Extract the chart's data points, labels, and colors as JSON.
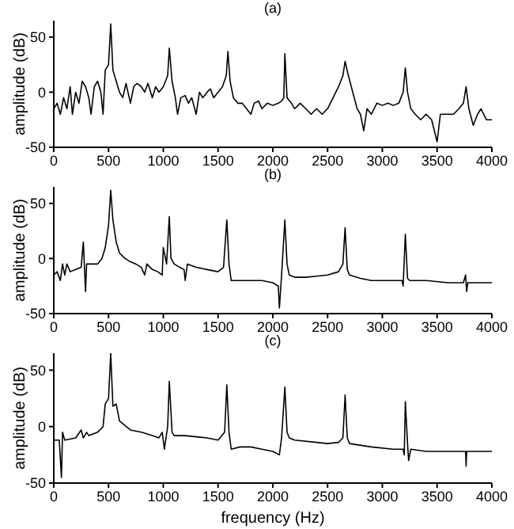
{
  "chart_data": [
    {
      "type": "line",
      "title": "(a)",
      "ylabel": "amplitude (dB)",
      "xlim": [
        0,
        4000
      ],
      "xticks": [
        0,
        500,
        1000,
        1500,
        2000,
        2500,
        3000,
        3500,
        4000
      ],
      "ylim": [
        -50,
        65
      ],
      "yticks": [
        -50,
        0,
        50
      ],
      "marker": "none",
      "line_style": "solid",
      "x": [
        0,
        30,
        60,
        90,
        120,
        150,
        170,
        200,
        230,
        260,
        290,
        320,
        340,
        370,
        400,
        430,
        450,
        470,
        500,
        520,
        540,
        570,
        600,
        630,
        660,
        700,
        730,
        760,
        800,
        830,
        860,
        900,
        930,
        960,
        1000,
        1040,
        1055,
        1080,
        1110,
        1130,
        1160,
        1200,
        1230,
        1260,
        1300,
        1330,
        1360,
        1400,
        1430,
        1460,
        1500,
        1540,
        1575,
        1590,
        1610,
        1640,
        1680,
        1720,
        1760,
        1800,
        1830,
        1870,
        1900,
        1950,
        2000,
        2050,
        2080,
        2100,
        2110,
        2130,
        2170,
        2200,
        2250,
        2300,
        2350,
        2400,
        2450,
        2500,
        2550,
        2600,
        2640,
        2660,
        2690,
        2730,
        2770,
        2800,
        2830,
        2860,
        2900,
        2950,
        3000,
        3050,
        3100,
        3150,
        3190,
        3210,
        3230,
        3260,
        3300,
        3350,
        3400,
        3450,
        3500,
        3530,
        3600,
        3650,
        3700,
        3740,
        3765,
        3790,
        3830,
        3870,
        3900,
        3950,
        4000
      ],
      "series": [
        {
          "color": "#000000",
          "values": [
            -15,
            -10,
            -20,
            -5,
            -15,
            5,
            -20,
            0,
            -10,
            10,
            5,
            -5,
            -20,
            5,
            10,
            0,
            -20,
            20,
            25,
            62,
            20,
            10,
            0,
            -5,
            8,
            -10,
            5,
            8,
            5,
            0,
            8,
            -5,
            5,
            0,
            5,
            15,
            40,
            10,
            -5,
            -20,
            -5,
            -3,
            -10,
            -5,
            -20,
            0,
            -5,
            0,
            3,
            -5,
            0,
            5,
            15,
            37,
            10,
            -5,
            -10,
            -10,
            -15,
            -20,
            -10,
            -8,
            -15,
            -10,
            -12,
            -10,
            -8,
            -5,
            35,
            -5,
            -10,
            -15,
            -10,
            -15,
            -20,
            -15,
            -20,
            -15,
            -5,
            5,
            15,
            28,
            15,
            0,
            -15,
            -20,
            -35,
            -15,
            -20,
            -10,
            -12,
            -10,
            -12,
            -10,
            0,
            22,
            0,
            -15,
            -20,
            -25,
            -20,
            -25,
            -45,
            -20,
            -20,
            -20,
            -15,
            -10,
            5,
            -15,
            -30,
            -20,
            -15,
            -25,
            -25
          ]
        }
      ]
    },
    {
      "type": "line",
      "title": "(b)",
      "ylabel": "amplitude (dB)",
      "xlim": [
        0,
        4000
      ],
      "xticks": [
        0,
        500,
        1000,
        1500,
        2000,
        2500,
        3000,
        3500,
        4000
      ],
      "ylim": [
        -50,
        65
      ],
      "yticks": [
        -50,
        0,
        50
      ],
      "marker": "none",
      "line_style": "solid",
      "x": [
        0,
        30,
        60,
        80,
        100,
        120,
        150,
        200,
        250,
        270,
        290,
        300,
        350,
        400,
        440,
        470,
        500,
        520,
        540,
        570,
        600,
        650,
        700,
        750,
        800,
        830,
        850,
        900,
        950,
        990,
        1000,
        1030,
        1055,
        1070,
        1100,
        1150,
        1190,
        1200,
        1220,
        1300,
        1400,
        1500,
        1550,
        1580,
        1600,
        1620,
        1700,
        1800,
        1900,
        2000,
        2050,
        2060,
        2080,
        2110,
        2130,
        2150,
        2200,
        2300,
        2400,
        2500,
        2600,
        2640,
        2660,
        2680,
        2700,
        2800,
        2900,
        3000,
        3100,
        3180,
        3190,
        3210,
        3230,
        3250,
        3400,
        3600,
        3740,
        3760,
        3770,
        3780,
        4000
      ],
      "series": [
        {
          "color": "#000000",
          "values": [
            -15,
            -12,
            -20,
            -5,
            -15,
            -5,
            -12,
            -10,
            -8,
            15,
            -30,
            -5,
            -5,
            -5,
            0,
            10,
            30,
            62,
            35,
            15,
            5,
            0,
            -3,
            -5,
            -8,
            -15,
            -5,
            -10,
            -12,
            -15,
            10,
            -5,
            38,
            0,
            -5,
            -8,
            -10,
            -20,
            -5,
            -8,
            -10,
            -12,
            -8,
            35,
            -5,
            -20,
            -20,
            -20,
            -20,
            -22,
            -25,
            -45,
            -15,
            35,
            -5,
            -15,
            -17,
            -17,
            -16,
            -15,
            -12,
            -5,
            28,
            -10,
            -15,
            -18,
            -20,
            -20,
            -20,
            -20,
            -25,
            22,
            -18,
            -20,
            -20,
            -22,
            -22,
            -15,
            -30,
            -22,
            -22
          ]
        }
      ]
    },
    {
      "type": "line",
      "title": "(c)",
      "xlabel": "frequency (Hz)",
      "ylabel": "amplitude (dB)",
      "xlim": [
        0,
        4000
      ],
      "xticks": [
        0,
        500,
        1000,
        1500,
        2000,
        2500,
        3000,
        3500,
        4000
      ],
      "ylim": [
        -50,
        65
      ],
      "yticks": [
        -50,
        0,
        50
      ],
      "marker": "none",
      "line_style": "solid",
      "x": [
        0,
        50,
        70,
        80,
        100,
        200,
        250,
        270,
        300,
        320,
        400,
        450,
        470,
        500,
        520,
        540,
        570,
        600,
        700,
        800,
        900,
        960,
        990,
        1010,
        1040,
        1055,
        1080,
        1100,
        1200,
        1400,
        1500,
        1560,
        1580,
        1600,
        1620,
        1700,
        1800,
        1900,
        2000,
        2060,
        2080,
        2110,
        2130,
        2150,
        2200,
        2400,
        2500,
        2600,
        2640,
        2660,
        2680,
        2700,
        2900,
        3100,
        3190,
        3200,
        3210,
        3230,
        3240,
        3260,
        3400,
        3600,
        3760,
        3765,
        3770,
        4000
      ],
      "series": [
        {
          "color": "#000000",
          "values": [
            -12,
            -12,
            -45,
            -5,
            -12,
            -10,
            -3,
            -10,
            -5,
            -8,
            -5,
            0,
            20,
            25,
            65,
            18,
            20,
            5,
            -3,
            -5,
            -8,
            -10,
            -5,
            -20,
            0,
            40,
            -5,
            -8,
            -8,
            -10,
            -12,
            -5,
            37,
            -5,
            -20,
            -18,
            -18,
            -20,
            -22,
            -25,
            -10,
            35,
            -5,
            -10,
            -12,
            -14,
            -15,
            -14,
            -10,
            28,
            -10,
            -15,
            -18,
            -20,
            -20,
            -25,
            22,
            -15,
            -30,
            -20,
            -22,
            -22,
            -22,
            -35,
            -22,
            -22
          ]
        }
      ]
    }
  ]
}
